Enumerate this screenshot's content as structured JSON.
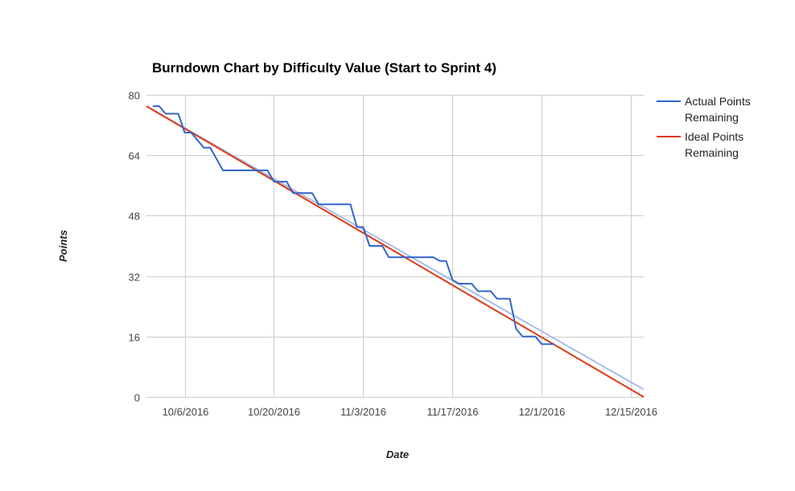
{
  "chart_data": {
    "type": "line",
    "title": "Burndown Chart by Difficulty Value (Start to Sprint 4)",
    "xlabel": "Date",
    "ylabel": "Points",
    "x_type": "date",
    "xlim": [
      "2016-09-30",
      "2016-12-17"
    ],
    "ylim": [
      0,
      80
    ],
    "x_ticks": [
      {
        "date": "2016-10-06",
        "label": "10/6/2016"
      },
      {
        "date": "2016-10-20",
        "label": "10/20/2016"
      },
      {
        "date": "2016-11-03",
        "label": "11/3/2016"
      },
      {
        "date": "2016-11-17",
        "label": "11/17/2016"
      },
      {
        "date": "2016-12-01",
        "label": "12/1/2016"
      },
      {
        "date": "2016-12-15",
        "label": "12/15/2016"
      }
    ],
    "y_ticks": [
      0,
      16,
      32,
      48,
      64,
      80
    ],
    "grid": true,
    "legend": "right",
    "series": [
      {
        "name": "Actual Points Remaining",
        "color": "#3366cc",
        "points": [
          [
            "2016-10-01",
            77
          ],
          [
            "2016-10-02",
            77
          ],
          [
            "2016-10-03",
            75
          ],
          [
            "2016-10-04",
            75
          ],
          [
            "2016-10-05",
            75
          ],
          [
            "2016-10-06",
            70
          ],
          [
            "2016-10-07",
            70
          ],
          [
            "2016-10-08",
            68
          ],
          [
            "2016-10-09",
            66
          ],
          [
            "2016-10-10",
            66
          ],
          [
            "2016-10-11",
            63
          ],
          [
            "2016-10-12",
            60
          ],
          [
            "2016-10-13",
            60
          ],
          [
            "2016-10-14",
            60
          ],
          [
            "2016-10-15",
            60
          ],
          [
            "2016-10-16",
            60
          ],
          [
            "2016-10-17",
            60
          ],
          [
            "2016-10-18",
            60
          ],
          [
            "2016-10-19",
            60
          ],
          [
            "2016-10-20",
            57
          ],
          [
            "2016-10-21",
            57
          ],
          [
            "2016-10-22",
            57
          ],
          [
            "2016-10-23",
            54
          ],
          [
            "2016-10-24",
            54
          ],
          [
            "2016-10-25",
            54
          ],
          [
            "2016-10-26",
            54
          ],
          [
            "2016-10-27",
            51
          ],
          [
            "2016-10-28",
            51
          ],
          [
            "2016-10-29",
            51
          ],
          [
            "2016-10-30",
            51
          ],
          [
            "2016-10-31",
            51
          ],
          [
            "2016-11-01",
            51
          ],
          [
            "2016-11-02",
            45
          ],
          [
            "2016-11-03",
            45
          ],
          [
            "2016-11-04",
            40
          ],
          [
            "2016-11-05",
            40
          ],
          [
            "2016-11-06",
            40
          ],
          [
            "2016-11-07",
            37
          ],
          [
            "2016-11-08",
            37
          ],
          [
            "2016-11-09",
            37
          ],
          [
            "2016-11-10",
            37
          ],
          [
            "2016-11-11",
            37
          ],
          [
            "2016-11-12",
            37
          ],
          [
            "2016-11-13",
            37
          ],
          [
            "2016-11-14",
            37
          ],
          [
            "2016-11-15",
            36
          ],
          [
            "2016-11-16",
            36
          ],
          [
            "2016-11-17",
            31
          ],
          [
            "2016-11-18",
            30
          ],
          [
            "2016-11-19",
            30
          ],
          [
            "2016-11-20",
            30
          ],
          [
            "2016-11-21",
            28
          ],
          [
            "2016-11-22",
            28
          ],
          [
            "2016-11-23",
            28
          ],
          [
            "2016-11-24",
            26
          ],
          [
            "2016-11-25",
            26
          ],
          [
            "2016-11-26",
            26
          ],
          [
            "2016-11-27",
            18
          ],
          [
            "2016-11-28",
            16
          ],
          [
            "2016-11-29",
            16
          ],
          [
            "2016-11-30",
            16
          ],
          [
            "2016-12-01",
            14
          ],
          [
            "2016-12-02",
            14
          ],
          [
            "2016-12-03",
            14
          ]
        ]
      },
      {
        "name": "Ideal Points Remaining",
        "color": "#dc3912",
        "points": [
          [
            "2016-09-30",
            77
          ],
          [
            "2016-12-17",
            0
          ]
        ]
      }
    ],
    "trendline": {
      "color": "#a8bde8",
      "points": [
        [
          "2016-09-30",
          77
        ],
        [
          "2016-12-17",
          2
        ]
      ]
    }
  }
}
